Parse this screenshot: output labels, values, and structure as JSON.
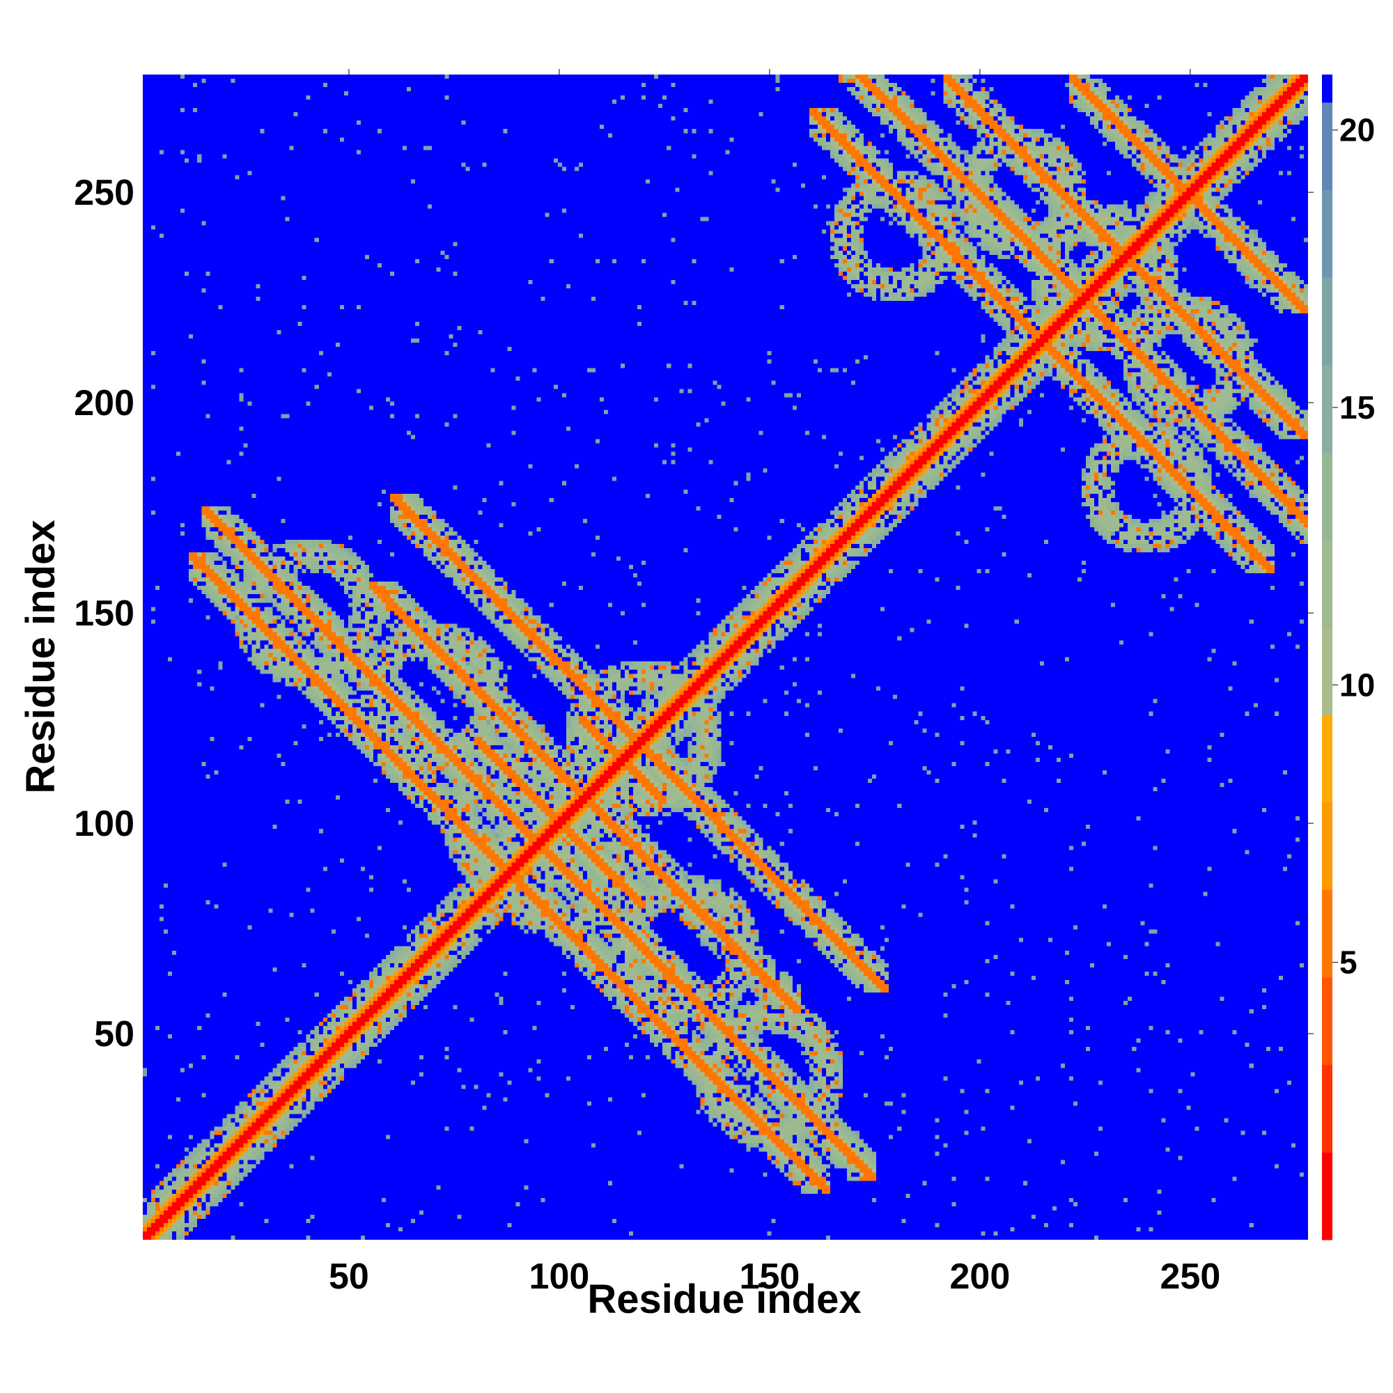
{
  "chart_data": {
    "type": "heatmap",
    "title": "",
    "xlabel": "Residue index",
    "ylabel": "Residue index",
    "n_residues": 278,
    "xlim": [
      1,
      278
    ],
    "ylim": [
      1,
      278
    ],
    "xticks": [
      50,
      100,
      150,
      200,
      250
    ],
    "yticks": [
      50,
      100,
      150,
      200,
      250
    ],
    "colorbar": {
      "ticks": [
        5,
        10,
        15,
        20
      ],
      "range": [
        0,
        21
      ],
      "colors": [
        "#ff0000",
        "#ff3300",
        "#ff5500",
        "#ff7700",
        "#ff9900",
        "#ffaa00",
        "#a8bc8c",
        "#9fba90",
        "#96b794",
        "#8aaea0",
        "#7ea4a8",
        "#6f96b0",
        "#5f88b8",
        "#0000ff"
      ]
    },
    "diagonal": {
      "band_value": 0.5
    },
    "antidiagonal_bands": [
      {
        "sum": 176,
        "start": 12,
        "end": 76,
        "value": 5
      },
      {
        "sum": 212,
        "start": 55,
        "end": 100,
        "value": 5
      },
      {
        "sum": 238,
        "start": 60,
        "end": 120,
        "value": 5
      },
      {
        "sum": 200,
        "start": 80,
        "end": 120,
        "value": 5
      },
      {
        "sum": 230,
        "start": 110,
        "end": 125,
        "value": 5
      },
      {
        "sum": 190,
        "start": 115,
        "end": 175,
        "value": 5
      },
      {
        "sum": 450,
        "start": 160,
        "end": 275,
        "value": 5
      },
      {
        "sum": 470,
        "start": 200,
        "end": 278,
        "value": 5
      },
      {
        "sum": 430,
        "start": 160,
        "end": 240,
        "value": 5
      },
      {
        "sum": 500,
        "start": 240,
        "end": 278,
        "value": 5
      }
    ],
    "contact_rings": [
      {
        "i": 120,
        "j": 120,
        "radius": 15,
        "value": 11
      },
      {
        "i": 90,
        "j": 100,
        "radius": 14,
        "value": 11
      },
      {
        "i": 70,
        "j": 130,
        "radius": 14,
        "value": 11
      },
      {
        "i": 40,
        "j": 150,
        "radius": 14,
        "value": 11
      },
      {
        "i": 230,
        "j": 230,
        "radius": 14,
        "value": 11
      },
      {
        "i": 210,
        "j": 250,
        "radius": 12,
        "value": 11
      },
      {
        "i": 180,
        "j": 240,
        "radius": 12,
        "value": 11
      }
    ]
  }
}
